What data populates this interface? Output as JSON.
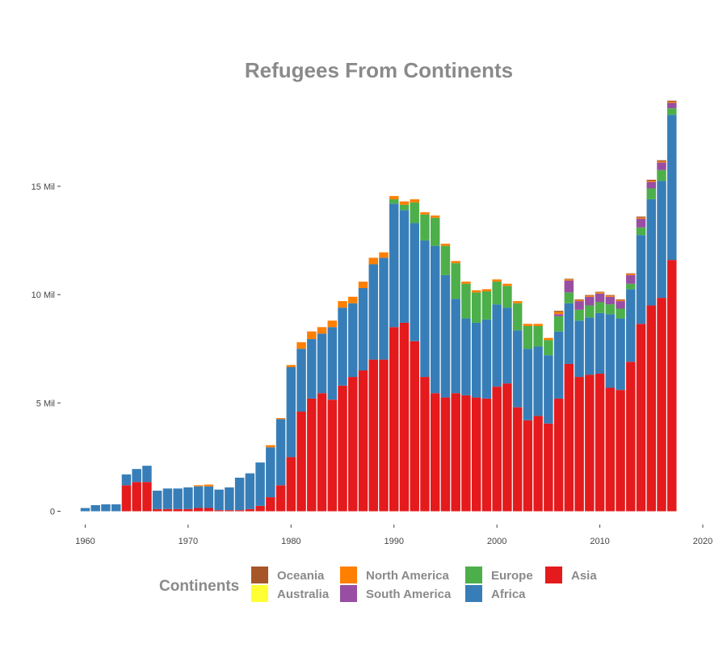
{
  "chart_data": {
    "type": "bar",
    "stacked": true,
    "title": "Refugees From Continents",
    "xlabel": "",
    "ylabel": "",
    "x": [
      1960,
      1961,
      1962,
      1963,
      1964,
      1965,
      1966,
      1967,
      1968,
      1969,
      1970,
      1971,
      1972,
      1973,
      1974,
      1975,
      1976,
      1977,
      1978,
      1979,
      1980,
      1981,
      1982,
      1983,
      1984,
      1985,
      1986,
      1987,
      1988,
      1989,
      1990,
      1991,
      1992,
      1993,
      1994,
      1995,
      1996,
      1997,
      1998,
      1999,
      2000,
      2001,
      2002,
      2003,
      2004,
      2005,
      2006,
      2007,
      2008,
      2009,
      2010,
      2011,
      2012,
      2013,
      2014,
      2015,
      2016,
      2017
    ],
    "xlim": [
      1958,
      2020
    ],
    "ylim": [
      -800000,
      19500000
    ],
    "x_ticks": [
      1960,
      1970,
      1980,
      1990,
      2000,
      2010,
      2020
    ],
    "x_tick_labels": [
      "1960",
      "1970",
      "1980",
      "1990",
      "2000",
      "2010",
      "2020"
    ],
    "y_ticks": [
      0,
      5000000,
      10000000,
      15000000
    ],
    "y_tick_labels": [
      "0",
      "5 Mil",
      "10 Mil",
      "15 Mil"
    ],
    "grid": false,
    "legend_placement": "bottom",
    "legend_title": "Continents",
    "series": [
      {
        "name": "Asia",
        "color": "#e41a1c",
        "values": [
          0,
          0,
          0,
          0,
          1200000,
          1350000,
          1350000,
          100000,
          100000,
          100000,
          100000,
          150000,
          150000,
          50000,
          50000,
          50000,
          100000,
          250000,
          650000,
          1200000,
          2500000,
          4600000,
          5200000,
          5450000,
          5150000,
          5800000,
          6200000,
          6500000,
          7000000,
          7000000,
          8500000,
          8700000,
          7850000,
          6200000,
          5450000,
          5250000,
          5450000,
          5350000,
          5250000,
          5200000,
          5750000,
          5900000,
          4800000,
          4200000,
          4400000,
          4050000,
          5200000,
          6800000,
          6200000,
          6300000,
          6350000,
          5700000,
          5600000,
          6900000,
          8650000,
          9500000,
          9850000,
          11600000
        ]
      },
      {
        "name": "Africa",
        "color": "#377eb8",
        "values": [
          150000,
          280000,
          320000,
          320000,
          500000,
          600000,
          750000,
          850000,
          950000,
          950000,
          1000000,
          1000000,
          1000000,
          950000,
          1050000,
          1500000,
          1650000,
          2000000,
          2300000,
          3050000,
          4150000,
          2900000,
          2750000,
          2750000,
          3350000,
          3600000,
          3400000,
          3800000,
          4400000,
          4700000,
          5700000,
          5200000,
          5450000,
          6300000,
          6800000,
          5650000,
          4350000,
          3550000,
          3450000,
          3650000,
          3800000,
          3500000,
          3550000,
          3300000,
          3200000,
          3150000,
          3100000,
          2800000,
          2600000,
          2650000,
          2800000,
          3400000,
          3300000,
          3350000,
          4100000,
          4900000,
          5400000,
          6700000
        ]
      },
      {
        "name": "Europe",
        "color": "#4daf4a",
        "values": [
          0,
          0,
          0,
          0,
          0,
          0,
          0,
          0,
          0,
          0,
          0,
          0,
          0,
          0,
          0,
          0,
          0,
          0,
          0,
          0,
          0,
          0,
          0,
          0,
          0,
          0,
          0,
          0,
          0,
          0,
          200000,
          250000,
          950000,
          1200000,
          1300000,
          1350000,
          1650000,
          1600000,
          1400000,
          1300000,
          1050000,
          1000000,
          1250000,
          1050000,
          950000,
          700000,
          700000,
          500000,
          500000,
          550000,
          500000,
          450000,
          450000,
          250000,
          350000,
          500000,
          500000,
          300000
        ]
      },
      {
        "name": "South America",
        "color": "#984ea3",
        "values": [
          0,
          0,
          0,
          0,
          0,
          0,
          0,
          0,
          0,
          0,
          0,
          0,
          0,
          0,
          0,
          0,
          0,
          0,
          0,
          0,
          0,
          0,
          0,
          0,
          0,
          0,
          0,
          0,
          0,
          0,
          0,
          0,
          0,
          0,
          0,
          0,
          0,
          0,
          0,
          0,
          0,
          0,
          0,
          0,
          0,
          0,
          100000,
          550000,
          400000,
          400000,
          400000,
          350000,
          350000,
          400000,
          400000,
          300000,
          350000,
          250000
        ]
      },
      {
        "name": "North America",
        "color": "#ff7f00",
        "values": [
          0,
          0,
          0,
          0,
          0,
          0,
          0,
          0,
          0,
          0,
          0,
          50000,
          80000,
          0,
          0,
          0,
          0,
          0,
          100000,
          50000,
          100000,
          300000,
          350000,
          300000,
          300000,
          300000,
          300000,
          300000,
          300000,
          250000,
          150000,
          150000,
          150000,
          100000,
          100000,
          100000,
          100000,
          100000,
          100000,
          100000,
          100000,
          100000,
          100000,
          100000,
          100000,
          100000,
          100000,
          50000,
          50000,
          50000,
          50000,
          50000,
          50000,
          50000,
          50000,
          50000,
          50000,
          50000
        ]
      },
      {
        "name": "Australia",
        "color": "#ffff33",
        "values": [
          0,
          0,
          0,
          0,
          0,
          0,
          0,
          0,
          0,
          0,
          0,
          0,
          0,
          0,
          0,
          0,
          0,
          0,
          0,
          0,
          0,
          0,
          0,
          0,
          0,
          0,
          0,
          0,
          0,
          0,
          0,
          0,
          0,
          0,
          0,
          0,
          0,
          0,
          0,
          0,
          0,
          0,
          0,
          0,
          0,
          0,
          0,
          0,
          0,
          0,
          0,
          0,
          0,
          0,
          0,
          0,
          0,
          0
        ]
      },
      {
        "name": "Oceania",
        "color": "#a65628",
        "values": [
          0,
          0,
          0,
          0,
          0,
          0,
          0,
          0,
          0,
          0,
          0,
          0,
          0,
          0,
          0,
          0,
          0,
          0,
          0,
          0,
          0,
          0,
          0,
          0,
          0,
          0,
          0,
          0,
          0,
          0,
          0,
          0,
          0,
          0,
          0,
          0,
          0,
          0,
          0,
          0,
          0,
          0,
          0,
          0,
          0,
          0,
          50000,
          30000,
          30000,
          30000,
          30000,
          30000,
          30000,
          30000,
          50000,
          50000,
          50000,
          50000
        ]
      }
    ],
    "legend_order": [
      "Oceania",
      "Australia",
      "North America",
      "South America",
      "Europe",
      "Africa",
      "Asia"
    ]
  }
}
